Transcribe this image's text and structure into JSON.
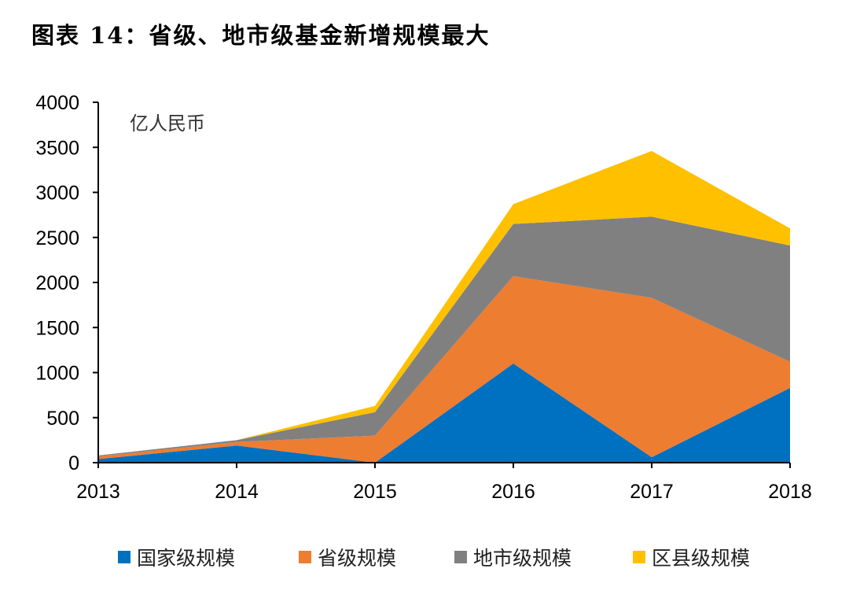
{
  "title": "图表 14：省级、地市级基金新增规模最大",
  "chart_data": {
    "type": "area",
    "stacked": true,
    "x": [
      "2013",
      "2014",
      "2015",
      "2016",
      "2017",
      "2018"
    ],
    "unit_label": "亿人民币",
    "ylim": [
      0,
      4000
    ],
    "yticks": [
      "0",
      "500",
      "1000",
      "1500",
      "2000",
      "2500",
      "3000",
      "3500",
      "4000"
    ],
    "grid": false,
    "legend_position": "bottom",
    "series": [
      {
        "name": "国家级规模",
        "color": "#0070C0",
        "values": [
          40,
          190,
          0,
          1100,
          60,
          830
        ]
      },
      {
        "name": "省级规模",
        "color": "#ED7D31",
        "values": [
          30,
          40,
          300,
          970,
          1770,
          290
        ]
      },
      {
        "name": "地市级规模",
        "color": "#808080",
        "values": [
          10,
          20,
          260,
          580,
          900,
          1290
        ]
      },
      {
        "name": "区县级规模",
        "color": "#FFC000",
        "values": [
          0,
          0,
          70,
          220,
          730,
          190
        ]
      }
    ]
  }
}
